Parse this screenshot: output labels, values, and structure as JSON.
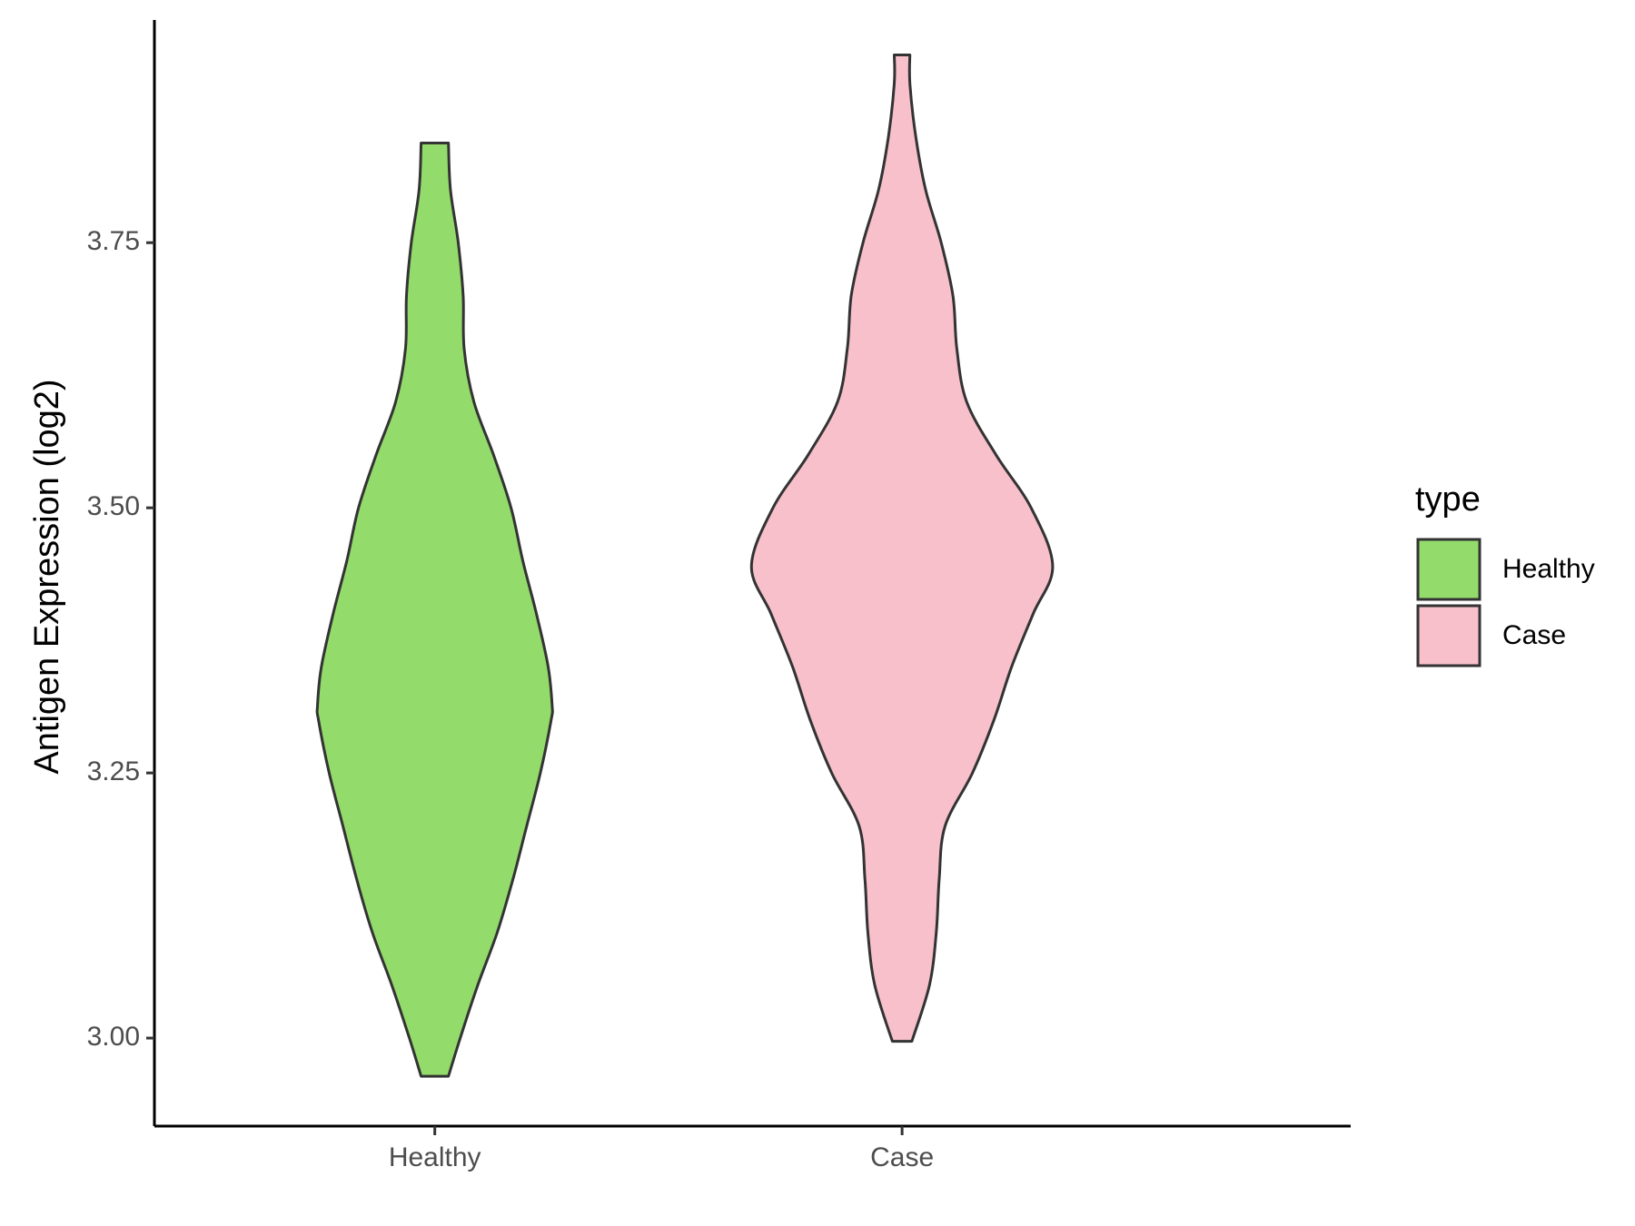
{
  "chart_data": {
    "type": "violin",
    "title": "",
    "xlabel": "",
    "ylabel": "Antigen Expression (log2)",
    "categories": [
      "Healthy",
      "Case"
    ],
    "ylim": [
      2.917,
      3.96
    ],
    "yticks": [
      {
        "value": 3.0,
        "label": "3.00"
      },
      {
        "value": 3.25,
        "label": "3.25"
      },
      {
        "value": 3.5,
        "label": "3.50"
      },
      {
        "value": 3.75,
        "label": "3.75"
      }
    ],
    "grid": false,
    "legend": {
      "title": "type",
      "position": "right",
      "entries": [
        {
          "label": "Healthy",
          "color": "#93DC6B"
        },
        {
          "label": "Case",
          "color": "#F7C0CB"
        }
      ]
    },
    "series": [
      {
        "name": "Healthy",
        "color": "#93DC6B",
        "ymin": 2.964,
        "ymax": 3.844,
        "profile": [
          [
            2.964,
            0.07
          ],
          [
            3.0,
            0.13
          ],
          [
            3.05,
            0.22
          ],
          [
            3.1,
            0.32
          ],
          [
            3.15,
            0.4
          ],
          [
            3.2,
            0.47
          ],
          [
            3.25,
            0.54
          ],
          [
            3.3,
            0.595
          ],
          [
            3.313,
            0.6
          ],
          [
            3.35,
            0.58
          ],
          [
            3.4,
            0.52
          ],
          [
            3.45,
            0.45
          ],
          [
            3.5,
            0.39
          ],
          [
            3.55,
            0.3
          ],
          [
            3.6,
            0.2
          ],
          [
            3.65,
            0.15
          ],
          [
            3.7,
            0.145
          ],
          [
            3.75,
            0.12
          ],
          [
            3.8,
            0.08
          ],
          [
            3.844,
            0.07
          ]
        ]
      },
      {
        "name": "Case",
        "color": "#F7C0CB",
        "ymin": 2.997,
        "ymax": 3.927,
        "profile": [
          [
            2.997,
            0.05
          ],
          [
            3.05,
            0.14
          ],
          [
            3.1,
            0.175
          ],
          [
            3.15,
            0.19
          ],
          [
            3.2,
            0.22
          ],
          [
            3.25,
            0.36
          ],
          [
            3.3,
            0.47
          ],
          [
            3.35,
            0.56
          ],
          [
            3.4,
            0.67
          ],
          [
            3.445,
            0.77
          ],
          [
            3.5,
            0.66
          ],
          [
            3.55,
            0.48
          ],
          [
            3.6,
            0.33
          ],
          [
            3.65,
            0.28
          ],
          [
            3.7,
            0.26
          ],
          [
            3.75,
            0.2
          ],
          [
            3.8,
            0.12
          ],
          [
            3.85,
            0.07
          ],
          [
            3.9,
            0.04
          ],
          [
            3.927,
            0.04
          ]
        ]
      }
    ]
  }
}
